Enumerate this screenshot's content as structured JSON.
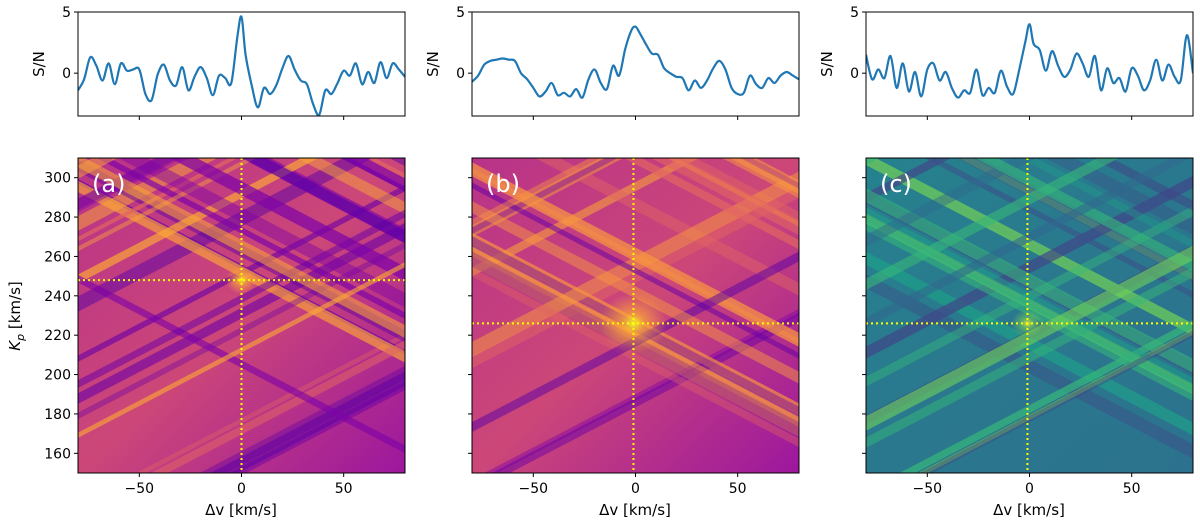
{
  "chart_data": [
    {
      "type": "line",
      "panel": "a-top",
      "ylabel": "S/N",
      "xlim": [
        -80,
        80
      ],
      "ylim": [
        -3.5,
        5
      ],
      "yticks": [
        0,
        5
      ],
      "xticks": [
        -50,
        0,
        50
      ],
      "x": [
        -80,
        -77,
        -74,
        -71,
        -68,
        -65,
        -62,
        -59,
        -56,
        -53,
        -50,
        -47,
        -44,
        -41,
        -38,
        -35,
        -32,
        -29,
        -26,
        -23,
        -20,
        -17,
        -14,
        -11,
        -8,
        -5,
        -2,
        0,
        2,
        5,
        8,
        11,
        14,
        17,
        20,
        23,
        26,
        29,
        32,
        35,
        38,
        41,
        44,
        47,
        50,
        53,
        56,
        59,
        62,
        65,
        68,
        71,
        74,
        77,
        80
      ],
      "y": [
        -1.4,
        -0.5,
        1.3,
        0.6,
        -0.6,
        0.8,
        -0.9,
        0.8,
        0.2,
        0.3,
        0.3,
        -1.7,
        -2.2,
        -0.1,
        0.7,
        -0.6,
        -1.0,
        0.5,
        -1.4,
        -0.3,
        0.5,
        -0.4,
        -1.8,
        -0.2,
        -0.4,
        -0.8,
        3.0,
        4.6,
        1.5,
        -1.0,
        -2.8,
        -1.2,
        -1.7,
        -1.0,
        0.4,
        1.4,
        0.3,
        -0.6,
        -0.9,
        -2.5,
        -3.4,
        -1.4,
        -1.7,
        -0.8,
        0.2,
        -0.2,
        0.8,
        -0.9,
        0.1,
        -0.8,
        0.9,
        -0.4,
        0.8,
        0.3,
        -0.3
      ],
      "color": "#1f77b4"
    },
    {
      "type": "line",
      "panel": "b-top",
      "ylabel": "S/N",
      "xlim": [
        -80,
        80
      ],
      "ylim": [
        -3.5,
        5
      ],
      "yticks": [
        0,
        5
      ],
      "xticks": [
        -50,
        0,
        50
      ],
      "x": [
        -80,
        -77,
        -74,
        -71,
        -68,
        -65,
        -62,
        -59,
        -56,
        -53,
        -50,
        -47,
        -44,
        -41,
        -38,
        -35,
        -32,
        -29,
        -26,
        -23,
        -20,
        -17,
        -14,
        -11,
        -8,
        -5,
        -2,
        0,
        2,
        5,
        8,
        11,
        14,
        17,
        20,
        23,
        26,
        29,
        32,
        35,
        38,
        41,
        44,
        47,
        50,
        53,
        56,
        59,
        62,
        65,
        68,
        71,
        74,
        77,
        80
      ],
      "y": [
        -0.7,
        -0.2,
        0.7,
        1.0,
        1.1,
        1.2,
        1.1,
        1.0,
        0.0,
        -0.5,
        -1.2,
        -1.9,
        -1.5,
        -0.8,
        -1.8,
        -1.6,
        -1.9,
        -1.3,
        -2.0,
        -0.5,
        0.3,
        -0.8,
        -1.3,
        0.6,
        -0.2,
        2.0,
        3.5,
        3.8,
        3.3,
        2.4,
        1.6,
        1.5,
        0.4,
        0.0,
        -0.3,
        -0.4,
        -1.4,
        -0.6,
        -1.2,
        -0.6,
        0.4,
        1.0,
        0.3,
        -1.2,
        -1.7,
        -1.6,
        -0.2,
        -0.9,
        -1.2,
        -0.4,
        -0.8,
        -0.2,
        0.1,
        -0.2,
        -0.5
      ],
      "color": "#1f77b4"
    },
    {
      "type": "line",
      "panel": "c-top",
      "ylabel": "S/N",
      "xlim": [
        -80,
        80
      ],
      "ylim": [
        -3.5,
        5
      ],
      "yticks": [
        0,
        5
      ],
      "xticks": [
        -50,
        0,
        50
      ],
      "x": [
        -80,
        -77,
        -74,
        -71,
        -68,
        -65,
        -62,
        -59,
        -56,
        -53,
        -50,
        -47,
        -44,
        -41,
        -38,
        -35,
        -32,
        -29,
        -26,
        -23,
        -20,
        -17,
        -14,
        -11,
        -8,
        -5,
        -2,
        0,
        2,
        5,
        8,
        11,
        14,
        17,
        20,
        23,
        26,
        29,
        32,
        35,
        38,
        41,
        44,
        47,
        50,
        53,
        56,
        59,
        62,
        65,
        68,
        71,
        74,
        77,
        80
      ],
      "y": [
        1.5,
        -0.5,
        0.3,
        -0.4,
        1.4,
        -1.2,
        0.8,
        -1.5,
        0.1,
        -1.9,
        0.3,
        0.8,
        -0.6,
        0.1,
        -1.2,
        -2.0,
        -1.4,
        -1.6,
        0.3,
        -1.8,
        -1.2,
        -1.6,
        0.2,
        -1.1,
        -1.7,
        0.3,
        2.6,
        4.0,
        2.4,
        1.9,
        0.2,
        1.8,
        0.6,
        -0.3,
        0.3,
        1.6,
        0.8,
        -0.3,
        1.4,
        -1.4,
        0.4,
        -0.8,
        -0.4,
        -1.5,
        0.4,
        -0.2,
        -1.4,
        -0.6,
        1.1,
        -0.6,
        0.7,
        -0.3,
        -0.6,
        3.1,
        0.0
      ],
      "color": "#1f77b4"
    },
    {
      "type": "heatmap",
      "panel": "a",
      "label": "(a)",
      "colormap": "plasma",
      "xlabel": "Δv [km/s]",
      "ylabel_prefix": "K",
      "ylabel_sub": "p",
      "ylabel_suffix": " [km/s]",
      "xlim": [
        -80,
        80
      ],
      "ylim": [
        150,
        310
      ],
      "xticks": [
        -50,
        0,
        50
      ],
      "yticks": [
        160,
        180,
        200,
        220,
        240,
        260,
        280,
        300
      ],
      "peak": {
        "dv": 0,
        "kp": 248
      },
      "crosshair_color": "#ffff00"
    },
    {
      "type": "heatmap",
      "panel": "b",
      "label": "(b)",
      "colormap": "plasma",
      "xlabel": "Δv [km/s]",
      "xlim": [
        -80,
        80
      ],
      "ylim": [
        150,
        310
      ],
      "xticks": [
        -50,
        0,
        50
      ],
      "yticks": [
        160,
        180,
        200,
        220,
        240,
        260,
        280,
        300
      ],
      "peak": {
        "dv": -1,
        "kp": 226
      },
      "crosshair_color": "#ffff00"
    },
    {
      "type": "heatmap",
      "panel": "c",
      "label": "(c)",
      "colormap": "viridis",
      "xlabel": "Δv [km/s]",
      "xlim": [
        -80,
        80
      ],
      "ylim": [
        150,
        310
      ],
      "xticks": [
        -50,
        0,
        50
      ],
      "yticks": [
        160,
        180,
        200,
        220,
        240,
        260,
        280,
        300
      ],
      "peak": {
        "dv": -1,
        "kp": 226
      },
      "crosshair_color": "#ffff00"
    }
  ]
}
